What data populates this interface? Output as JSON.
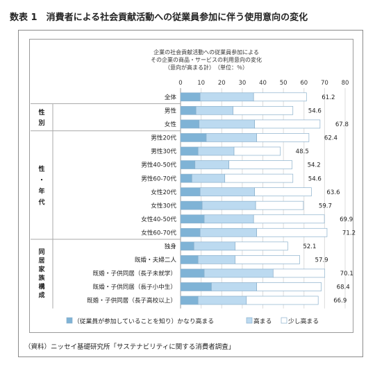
{
  "figure_title": "数表 1　消費者による社会貢献活動への従業員参加に伴う使用意向の変化",
  "chart_data": {
    "type": "bar",
    "stacked": true,
    "orientation": "horizontal",
    "title_lines": [
      "企業の社会貢献活動への従業員参加による",
      "その企業の商品・サービスの利用意向の変化",
      "（意向が高まる計）　（単位：％）"
    ],
    "xlim": [
      0,
      80
    ],
    "xticks": [
      0,
      10,
      20,
      30,
      40,
      50,
      60,
      70,
      80
    ],
    "grid": true,
    "legend_position": "bottom",
    "categories": [
      "全体",
      "男性",
      "女性",
      "男性20代",
      "男性30代",
      "男性40-50代",
      "男性60-70代",
      "女性20代",
      "女性30代",
      "女性40-50代",
      "女性60-70代",
      "独身",
      "既婚・夫婦二人",
      "既婚・子供同居（長子未就学）",
      "既婚・子供同居（長子小中生）",
      "既婚・子供同居（長子高校以上）"
    ],
    "series": [
      {
        "name": "（従業員が参加していることを知り）かなり高まる",
        "color": "#7fb3d6",
        "values": [
          9.5,
          7.5,
          9.0,
          12.5,
          8.5,
          7.0,
          5.5,
          9.5,
          10.5,
          11.5,
          9.5,
          6.5,
          8.5,
          11.5,
          15.0,
          8.5
        ]
      },
      {
        "name": "高まる",
        "color": "#bcdaf0",
        "values": [
          26.0,
          18.0,
          27.0,
          24.5,
          17.5,
          16.5,
          16.0,
          26.5,
          26.0,
          24.0,
          27.5,
          20.0,
          18.0,
          33.5,
          22.0,
          23.5
        ]
      },
      {
        "name": "少し高まる",
        "color": "#ffffff",
        "values": [
          25.7,
          29.1,
          31.8,
          25.4,
          22.5,
          30.7,
          33.1,
          27.6,
          23.2,
          34.4,
          34.2,
          25.6,
          31.4,
          25.1,
          31.4,
          34.9
        ]
      }
    ],
    "totals": [
      "61.2",
      "54.6",
      "67.8",
      "62.4",
      "48.5",
      "54.2",
      "54.6",
      "63.6",
      "59.7",
      "69.9",
      "71.2",
      "52.1",
      "57.9",
      "70.1",
      "68.4",
      "66.9"
    ],
    "groups": [
      {
        "label": "",
        "rows": [
          0
        ]
      },
      {
        "label": "性別",
        "rows": [
          1,
          2
        ]
      },
      {
        "label": "性・年代",
        "rows": [
          3,
          4,
          5,
          6,
          7,
          8,
          9,
          10
        ]
      },
      {
        "label": "同居家族構成",
        "rows": [
          11,
          12,
          13,
          14,
          15
        ]
      }
    ]
  },
  "source": "（資料）ニッセイ基礎研究所「サステナビリティに関する消費者調査」"
}
